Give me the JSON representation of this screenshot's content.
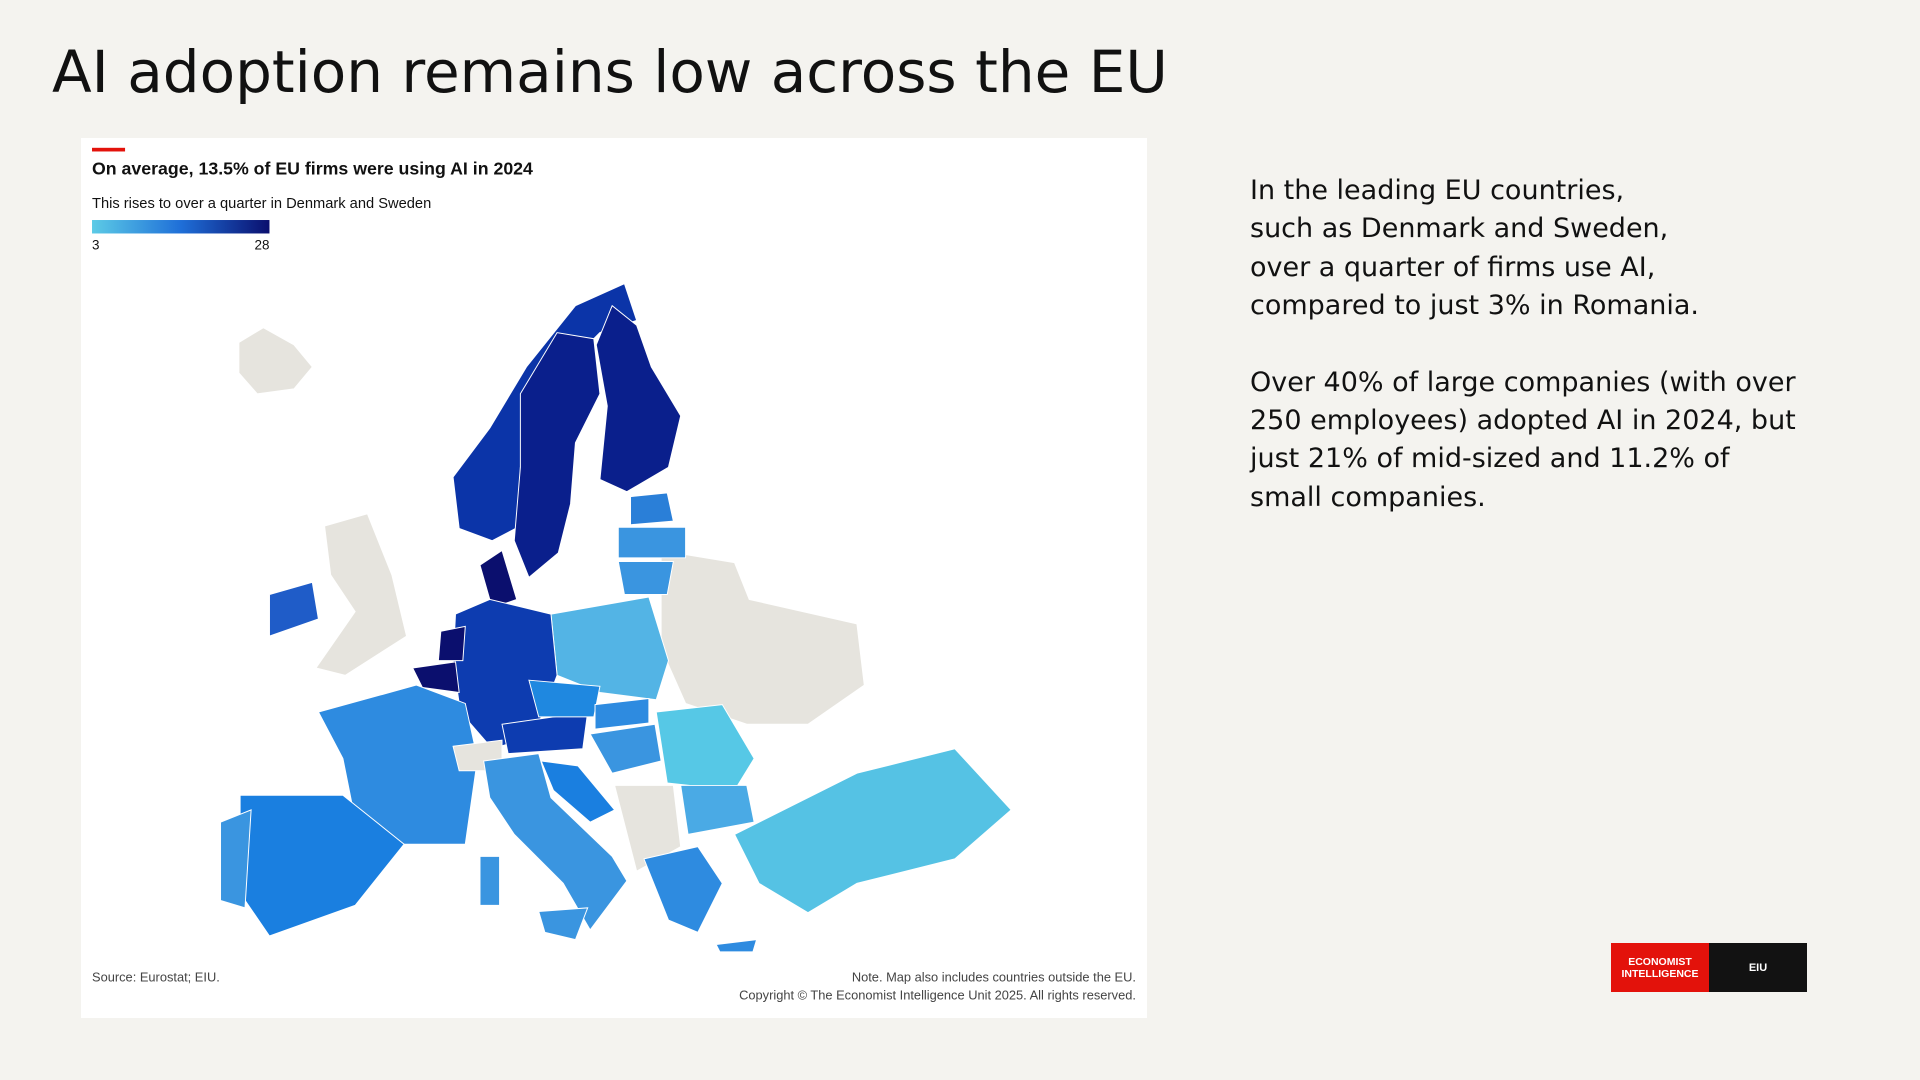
{
  "header": {
    "title": "AI adoption remains low across the EU"
  },
  "panel": {
    "title": "On average, 13.5% of EU firms were using AI in 2024",
    "subtitle": "This rises to over a quarter in Denmark and Sweden",
    "legend": {
      "min": "3",
      "max": "28"
    },
    "source": "Source: Eurostat; EIU.",
    "note": "Note. Map also includes countries outside the EU.",
    "copyright": "Copyright © The Economist Intelligence Unit 2025. All rights reserved."
  },
  "text": {
    "paragraphs": [
      "In the leading EU countries,\nsuch as Denmark and Sweden,\nover a quarter of firms use AI,\ncompared to just 3% in Romania.",
      "Over 40% of large companies (with over\n250 employees) adopted AI in 2024, but\njust 21% of mid-sized and 11.2% of\nsmall companies."
    ]
  },
  "logo": {
    "left": "ECONOMIST\nINTELLIGENCE",
    "right": "EIU"
  }
}
